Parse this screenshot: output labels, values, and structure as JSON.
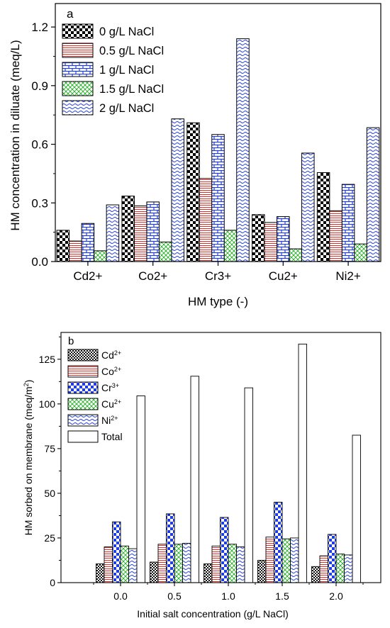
{
  "chart_data": [
    {
      "panel_label": "a",
      "type": "bar",
      "xlabel": "HM type (-)",
      "ylabel": "HM concentration in diluate (meq/L)",
      "ylim": [
        0,
        1.32
      ],
      "yticks": [
        "0.0",
        "0.3",
        "0.6",
        "0.9",
        "1.2"
      ],
      "ytick_values": [
        0,
        0.3,
        0.6,
        0.9,
        1.2
      ],
      "categories": [
        "Cd2+",
        "Co2+",
        "Cr3+",
        "Cu2+",
        "Ni2+"
      ],
      "legend_position": "top-left",
      "series": [
        {
          "name": "0 g/L NaCl",
          "pattern": "checker",
          "values": [
            0.16,
            0.335,
            0.71,
            0.24,
            0.455
          ]
        },
        {
          "name": "0.5 g/L NaCl",
          "pattern": "hlines-red",
          "values": [
            0.105,
            0.285,
            0.425,
            0.2,
            0.26
          ]
        },
        {
          "name": "1 g/L NaCl",
          "pattern": "brick-blue",
          "values": [
            0.195,
            0.305,
            0.65,
            0.23,
            0.395
          ]
        },
        {
          "name": "1.5 g/L NaCl",
          "pattern": "cross-green",
          "values": [
            0.055,
            0.1,
            0.16,
            0.065,
            0.09
          ]
        },
        {
          "name": "2 g/L NaCl",
          "pattern": "wave-blue",
          "values": [
            0.29,
            0.73,
            1.14,
            0.555,
            0.685
          ]
        }
      ]
    },
    {
      "panel_label": "b",
      "type": "bar",
      "xlabel": "Initial salt concentration  (g/L NaCl)",
      "ylabel_main": "HM sorbed on membrane  (meq/m",
      "ylabel_sup": "2",
      "ylabel_end": ")",
      "ylim": [
        0,
        140
      ],
      "yticks": [
        "0",
        "25",
        "50",
        "75",
        "100",
        "125"
      ],
      "ytick_values": [
        0,
        25,
        50,
        75,
        100,
        125
      ],
      "categories": [
        "0.0",
        "0.5",
        "1.0",
        "1.5",
        "2.0"
      ],
      "legend_position": "top-left",
      "series": [
        {
          "name": "Cd",
          "sup": "2+",
          "pattern": "checker-small",
          "values": [
            10.5,
            11.5,
            10.5,
            12.5,
            9
          ]
        },
        {
          "name": "Co",
          "sup": "2+",
          "pattern": "hlines-red",
          "values": [
            20,
            21.5,
            20.5,
            25.5,
            15
          ]
        },
        {
          "name": "Cr",
          "sup": "3+",
          "pattern": "checker-blue",
          "values": [
            34,
            38.5,
            36.5,
            45,
            27
          ]
        },
        {
          "name": "Cu",
          "sup": "2+",
          "pattern": "cross-green",
          "values": [
            20.5,
            21.5,
            21.5,
            24.5,
            16
          ]
        },
        {
          "name": "Ni",
          "sup": "2+",
          "pattern": "wave-blue",
          "values": [
            19,
            22,
            20,
            25,
            15.5
          ]
        },
        {
          "name": "Total",
          "sup": "",
          "pattern": "white",
          "values": [
            104.5,
            115.5,
            109,
            133.5,
            82.5
          ]
        }
      ]
    }
  ]
}
